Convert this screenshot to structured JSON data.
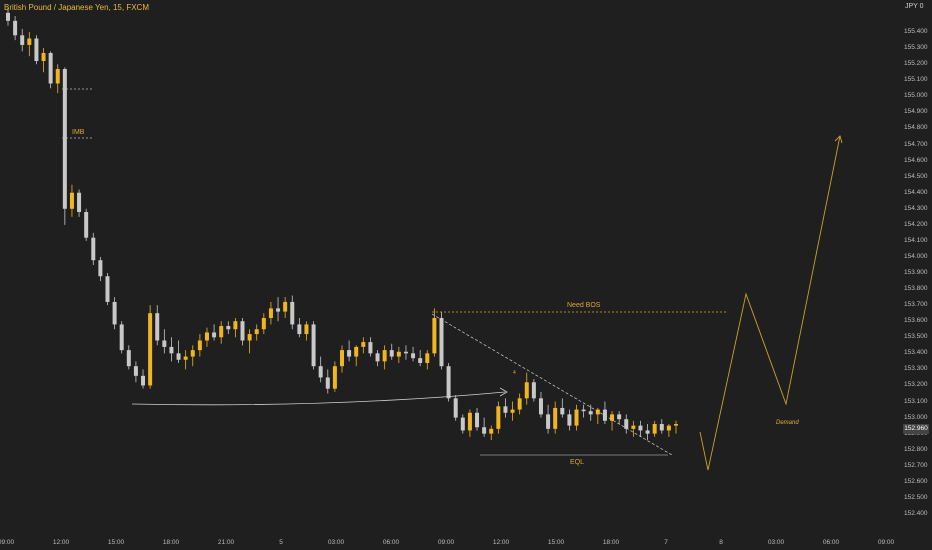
{
  "symbol_title": "British Pound / Japanese Yen, 15, FXCM",
  "currency_label": "JPY 0",
  "current_price_label": "152.960",
  "annotations": {
    "imb": "IMB",
    "need_bos": "Need BOS",
    "eql": "EQL",
    "demand": "Demand",
    "small_marker": "4"
  },
  "colors": {
    "background": "#1f1f1f",
    "bull_candle": "#f0b521",
    "bear_candle": "#c8c8c8",
    "annotation": "#d9a92e",
    "projection_line": "#c9a227"
  },
  "chart_data": {
    "type": "candlestick",
    "title": "British Pound / Japanese Yen, 15, FXCM",
    "y_ticks": [
      "155.400",
      "155.300",
      "155.200",
      "155.100",
      "155.000",
      "154.900",
      "154.800",
      "154.700",
      "154.600",
      "154.500",
      "154.400",
      "154.300",
      "154.200",
      "154.100",
      "154.000",
      "153.900",
      "153.800",
      "153.700",
      "153.600",
      "153.500",
      "153.400",
      "153.300",
      "153.200",
      "153.100",
      "153.000",
      "152.900",
      "152.800",
      "152.700",
      "152.600",
      "152.500",
      "152.400"
    ],
    "x_ticks": [
      "09:00",
      "12:00",
      "15:00",
      "18:00",
      "21:00",
      "5",
      "03:00",
      "06:00",
      "09:00",
      "12:00",
      "15:00",
      "18:00",
      "7",
      "8",
      "03:00",
      "06:00",
      "09:00"
    ],
    "ylim": [
      152.35,
      155.55
    ],
    "candles": [
      [
        155.52,
        155.55,
        155.44,
        155.47
      ],
      [
        155.47,
        155.5,
        155.35,
        155.38
      ],
      [
        155.38,
        155.42,
        155.28,
        155.32
      ],
      [
        155.32,
        155.4,
        155.25,
        155.36
      ],
      [
        155.36,
        155.38,
        155.2,
        155.22
      ],
      [
        155.22,
        155.3,
        155.15,
        155.27
      ],
      [
        155.27,
        155.28,
        155.05,
        155.08
      ],
      [
        155.08,
        155.2,
        155.02,
        155.17
      ],
      [
        155.17,
        155.18,
        154.2,
        154.3
      ],
      [
        154.3,
        154.45,
        154.25,
        154.4
      ],
      [
        154.4,
        154.42,
        154.25,
        154.28
      ],
      [
        154.28,
        154.3,
        154.1,
        154.12
      ],
      [
        154.12,
        154.15,
        153.95,
        153.98
      ],
      [
        153.98,
        154.0,
        153.85,
        153.88
      ],
      [
        153.88,
        153.9,
        153.7,
        153.72
      ],
      [
        153.72,
        153.75,
        153.55,
        153.58
      ],
      [
        153.58,
        153.6,
        153.4,
        153.42
      ],
      [
        153.42,
        153.45,
        153.3,
        153.32
      ],
      [
        153.32,
        153.35,
        153.22,
        153.26
      ],
      [
        153.26,
        153.3,
        153.18,
        153.2
      ],
      [
        153.2,
        153.7,
        153.18,
        153.65
      ],
      [
        153.65,
        153.7,
        153.45,
        153.48
      ],
      [
        153.48,
        153.55,
        153.4,
        153.44
      ],
      [
        153.44,
        153.5,
        153.35,
        153.4
      ],
      [
        153.4,
        153.48,
        153.34,
        153.36
      ],
      [
        153.36,
        153.42,
        153.3,
        153.38
      ],
      [
        153.38,
        153.45,
        153.32,
        153.42
      ],
      [
        153.42,
        153.52,
        153.38,
        153.48
      ],
      [
        153.48,
        153.56,
        153.44,
        153.53
      ],
      [
        153.53,
        153.58,
        153.48,
        153.5
      ],
      [
        153.5,
        153.6,
        153.46,
        153.57
      ],
      [
        153.57,
        153.6,
        153.52,
        153.55
      ],
      [
        153.55,
        153.62,
        153.5,
        153.6
      ],
      [
        153.6,
        153.62,
        153.45,
        153.48
      ],
      [
        153.48,
        153.55,
        153.4,
        153.52
      ],
      [
        153.52,
        153.58,
        153.48,
        153.55
      ],
      [
        153.55,
        153.65,
        153.52,
        153.62
      ],
      [
        153.62,
        153.72,
        153.58,
        153.68
      ],
      [
        153.68,
        153.75,
        153.6,
        153.66
      ],
      [
        153.66,
        153.75,
        153.62,
        153.72
      ],
      [
        153.72,
        153.76,
        153.55,
        153.58
      ],
      [
        153.58,
        153.62,
        153.5,
        153.52
      ],
      [
        153.52,
        153.6,
        153.48,
        153.58
      ],
      [
        153.58,
        153.6,
        153.3,
        153.32
      ],
      [
        153.32,
        153.38,
        153.22,
        153.25
      ],
      [
        153.25,
        153.3,
        153.15,
        153.18
      ],
      [
        153.18,
        153.35,
        153.16,
        153.32
      ],
      [
        153.32,
        153.45,
        153.28,
        153.42
      ],
      [
        153.42,
        153.48,
        153.35,
        153.38
      ],
      [
        153.38,
        153.45,
        153.32,
        153.44
      ],
      [
        153.44,
        153.5,
        153.4,
        153.47
      ],
      [
        153.47,
        153.5,
        153.38,
        153.4
      ],
      [
        153.4,
        153.42,
        153.32,
        153.35
      ],
      [
        153.35,
        153.45,
        153.3,
        153.42
      ],
      [
        153.42,
        153.46,
        153.36,
        153.38
      ],
      [
        153.38,
        153.44,
        153.34,
        153.41
      ],
      [
        153.41,
        153.45,
        153.36,
        153.4
      ],
      [
        153.4,
        153.44,
        153.35,
        153.37
      ],
      [
        153.37,
        153.42,
        153.32,
        153.34
      ],
      [
        153.34,
        153.42,
        153.3,
        153.4
      ],
      [
        153.4,
        153.68,
        153.38,
        153.62
      ],
      [
        153.62,
        153.66,
        153.3,
        153.32
      ],
      [
        153.32,
        153.34,
        153.1,
        153.12
      ],
      [
        153.12,
        153.14,
        152.98,
        153.0
      ],
      [
        153.0,
        153.02,
        152.9,
        152.92
      ],
      [
        152.92,
        153.05,
        152.88,
        153.03
      ],
      [
        153.03,
        153.06,
        152.92,
        152.94
      ],
      [
        152.94,
        153.0,
        152.88,
        152.9
      ],
      [
        152.9,
        152.95,
        152.86,
        152.93
      ],
      [
        152.93,
        153.1,
        152.9,
        153.07
      ],
      [
        153.07,
        153.12,
        153.0,
        153.03
      ],
      [
        153.03,
        153.1,
        152.98,
        153.05
      ],
      [
        153.05,
        153.15,
        153.02,
        153.12
      ],
      [
        153.12,
        153.28,
        153.08,
        153.22
      ],
      [
        153.22,
        153.24,
        153.1,
        153.12
      ],
      [
        153.12,
        153.16,
        153.0,
        153.02
      ],
      [
        153.02,
        153.08,
        152.9,
        152.93
      ],
      [
        152.93,
        153.1,
        152.9,
        153.06
      ],
      [
        153.06,
        153.12,
        153.0,
        153.02
      ],
      [
        153.02,
        153.05,
        152.92,
        152.95
      ],
      [
        152.95,
        153.08,
        152.92,
        153.05
      ],
      [
        153.05,
        153.08,
        153.0,
        153.04
      ],
      [
        153.04,
        153.08,
        152.98,
        153.02
      ],
      [
        153.02,
        153.06,
        152.96,
        153.05
      ],
      [
        153.05,
        153.1,
        152.96,
        152.98
      ],
      [
        152.98,
        153.04,
        152.92,
        153.02
      ],
      [
        153.02,
        153.04,
        152.96,
        152.99
      ],
      [
        152.99,
        153.02,
        152.9,
        152.93
      ],
      [
        152.93,
        152.98,
        152.88,
        152.95
      ],
      [
        152.95,
        152.98,
        152.88,
        152.92
      ],
      [
        152.92,
        152.96,
        152.86,
        152.9
      ],
      [
        152.9,
        152.98,
        152.88,
        152.96
      ],
      [
        152.96,
        152.99,
        152.9,
        152.92
      ],
      [
        152.92,
        152.96,
        152.88,
        152.95
      ],
      [
        152.95,
        152.98,
        152.9,
        152.96
      ]
    ],
    "projection": [
      [
        700,
        432
      ],
      [
        708,
        470
      ],
      [
        746,
        294
      ],
      [
        786,
        404
      ],
      [
        840,
        136
      ]
    ]
  }
}
